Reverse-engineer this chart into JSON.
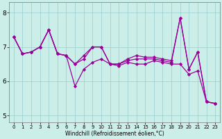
{
  "xlabel": "Windchill (Refroidissement éolien,°C)",
  "xlim": [
    -0.5,
    23.5
  ],
  "ylim": [
    4.8,
    8.3
  ],
  "yticks": [
    5,
    6,
    7,
    8
  ],
  "xticks": [
    0,
    1,
    2,
    3,
    4,
    5,
    6,
    7,
    8,
    9,
    10,
    11,
    12,
    13,
    14,
    15,
    16,
    17,
    18,
    19,
    20,
    21,
    22,
    23
  ],
  "bg_color": "#cceee8",
  "line_color": "#990099",
  "grid_color": "#99cccc",
  "series": [
    [
      7.3,
      6.8,
      6.85,
      7.0,
      7.5,
      6.8,
      6.75,
      5.85,
      6.35,
      6.55,
      6.65,
      6.5,
      6.45,
      6.55,
      6.5,
      6.5,
      6.6,
      6.55,
      6.5,
      6.5,
      6.2,
      6.3,
      5.4,
      5.35
    ],
    [
      7.3,
      6.8,
      6.85,
      7.0,
      7.5,
      6.8,
      6.75,
      6.5,
      6.65,
      7.0,
      7.0,
      6.5,
      6.5,
      6.6,
      6.65,
      6.65,
      6.65,
      6.6,
      6.55,
      7.85,
      6.35,
      6.85,
      5.4,
      5.35
    ],
    [
      7.3,
      6.8,
      6.85,
      7.0,
      7.5,
      6.8,
      6.75,
      6.5,
      6.75,
      7.0,
      7.0,
      6.5,
      6.5,
      6.65,
      6.75,
      6.7,
      6.7,
      6.65,
      6.6,
      7.85,
      6.35,
      6.85,
      5.4,
      5.35
    ]
  ],
  "marker": "D",
  "markersize": 2.2,
  "linewidth": 0.9,
  "tick_fontsize_x": 5.0,
  "tick_fontsize_y": 6.5,
  "xlabel_fontsize": 5.5,
  "figwidth": 3.2,
  "figheight": 2.0,
  "dpi": 100
}
